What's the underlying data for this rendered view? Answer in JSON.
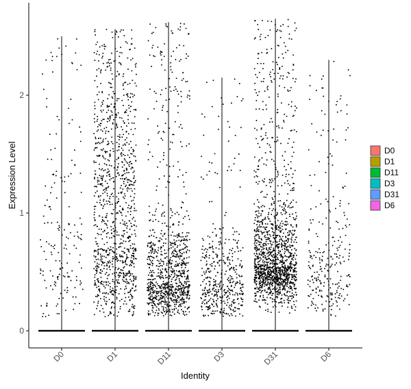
{
  "chart_data": {
    "type": "scatter",
    "subtype": "violin-jitter",
    "title": "",
    "xlabel": "Identity",
    "ylabel": "Expression Level",
    "categories": [
      "D0",
      "D1",
      "D11",
      "D3",
      "D31",
      "D6"
    ],
    "ylim": [
      -0.13,
      2.75
    ],
    "yticks": [
      0,
      1,
      2
    ],
    "grid": false,
    "legend": {
      "position": "right",
      "entries": [
        {
          "name": "D0",
          "color": "#F8766D"
        },
        {
          "name": "D1",
          "color": "#B79F00"
        },
        {
          "name": "D11",
          "color": "#00BA38"
        },
        {
          "name": "D3",
          "color": "#00BFC4"
        },
        {
          "name": "D31",
          "color": "#619CFF"
        },
        {
          "name": "D6",
          "color": "#F564E3"
        }
      ]
    },
    "series": [
      {
        "category": "D0",
        "max": 2.5,
        "approx_nonzero_cells": 180,
        "approx_upper_cells": 45
      },
      {
        "category": "D1",
        "max": 2.56,
        "approx_nonzero_cells": 1100,
        "approx_upper_cells": 320
      },
      {
        "category": "D11",
        "max": 2.62,
        "approx_nonzero_cells": 1000,
        "approx_upper_cells": 140
      },
      {
        "category": "D3",
        "max": 2.15,
        "approx_nonzero_cells": 460,
        "approx_upper_cells": 40
      },
      {
        "category": "D31",
        "max": 2.65,
        "approx_nonzero_cells": 1550,
        "approx_upper_cells": 230
      },
      {
        "category": "D6",
        "max": 2.3,
        "approx_nonzero_cells": 280,
        "approx_upper_cells": 45
      }
    ]
  }
}
